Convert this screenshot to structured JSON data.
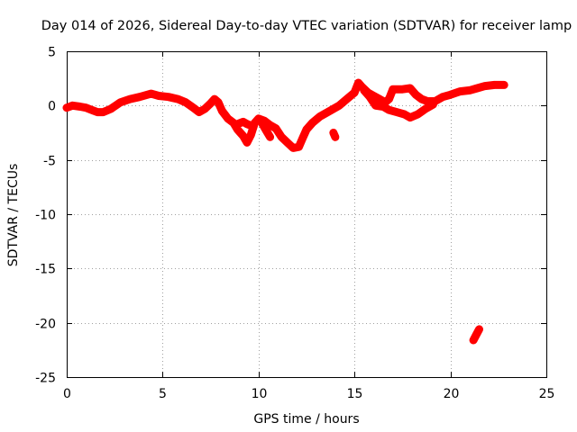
{
  "chart_data": {
    "type": "scatter",
    "title": "Day 014 of 2026, Sidereal Day-to-day VTEC variation (SDTVAR) for receiver lamp",
    "xlabel": "GPS time / hours",
    "ylabel": "SDTVAR / TECUs",
    "xlim": [
      0,
      25
    ],
    "ylim": [
      -25,
      5
    ],
    "xticks": [
      0,
      5,
      10,
      15,
      20,
      25
    ],
    "yticks": [
      5,
      0,
      -5,
      -10,
      -15,
      -20,
      -25
    ],
    "xtick_labels": [
      "0",
      "5",
      "10",
      "15",
      "20",
      "25"
    ],
    "ytick_labels": [
      "5",
      "0",
      "-5",
      "-10",
      "-15",
      "-20",
      "-25"
    ],
    "grid": true,
    "color": "#ff0000",
    "series": [
      {
        "name": "main track",
        "points": [
          [
            0.0,
            -0.2
          ],
          [
            0.3,
            0.0
          ],
          [
            0.7,
            -0.1
          ],
          [
            1.0,
            -0.2
          ],
          [
            1.3,
            -0.4
          ],
          [
            1.6,
            -0.6
          ],
          [
            1.9,
            -0.6
          ],
          [
            2.3,
            -0.3
          ],
          [
            2.8,
            0.3
          ],
          [
            3.3,
            0.6
          ],
          [
            3.8,
            0.8
          ],
          [
            4.4,
            1.1
          ],
          [
            4.8,
            0.9
          ],
          [
            5.3,
            0.8
          ],
          [
            5.8,
            0.6
          ],
          [
            6.2,
            0.3
          ],
          [
            6.6,
            -0.2
          ],
          [
            6.9,
            -0.6
          ],
          [
            7.2,
            -0.3
          ],
          [
            7.5,
            0.2
          ],
          [
            7.7,
            0.6
          ],
          [
            7.9,
            0.3
          ],
          [
            8.1,
            -0.5
          ],
          [
            8.4,
            -1.2
          ],
          [
            8.7,
            -1.6
          ],
          [
            8.9,
            -2.2
          ],
          [
            9.2,
            -2.8
          ],
          [
            9.4,
            -3.4
          ],
          [
            9.6,
            -2.7
          ],
          [
            9.8,
            -1.6
          ],
          [
            10.0,
            -1.2
          ],
          [
            10.3,
            -1.4
          ],
          [
            10.6,
            -1.8
          ],
          [
            10.9,
            -2.1
          ],
          [
            11.2,
            -2.9
          ],
          [
            11.5,
            -3.4
          ],
          [
            11.8,
            -3.9
          ],
          [
            12.1,
            -3.8
          ],
          [
            12.3,
            -3.0
          ],
          [
            12.5,
            -2.2
          ],
          [
            12.8,
            -1.6
          ],
          [
            13.2,
            -1.0
          ],
          [
            13.7,
            -0.5
          ],
          [
            14.2,
            0.0
          ],
          [
            14.6,
            0.6
          ],
          [
            15.0,
            1.2
          ],
          [
            15.2,
            2.1
          ],
          [
            15.4,
            1.7
          ],
          [
            15.7,
            1.2
          ],
          [
            16.0,
            0.9
          ],
          [
            16.3,
            0.6
          ],
          [
            16.6,
            0.3
          ],
          [
            16.8,
            0.6
          ],
          [
            17.0,
            1.5
          ],
          [
            17.5,
            1.5
          ],
          [
            17.9,
            1.6
          ],
          [
            18.2,
            1.0
          ],
          [
            18.5,
            0.6
          ],
          [
            18.8,
            0.4
          ],
          [
            19.2,
            0.4
          ],
          [
            19.6,
            0.8
          ],
          [
            20.0,
            1.0
          ],
          [
            20.5,
            1.3
          ],
          [
            21.0,
            1.4
          ],
          [
            21.4,
            1.6
          ],
          [
            21.8,
            1.8
          ],
          [
            22.3,
            1.9
          ],
          [
            22.8,
            1.9
          ]
        ]
      },
      {
        "name": "loop branch 1",
        "points": [
          [
            8.9,
            -1.7
          ],
          [
            9.2,
            -1.5
          ],
          [
            9.4,
            -1.7
          ],
          [
            9.7,
            -1.9
          ]
        ]
      },
      {
        "name": "loop branch 2",
        "points": [
          [
            10.2,
            -1.7
          ],
          [
            10.4,
            -2.3
          ],
          [
            10.6,
            -2.9
          ]
        ]
      },
      {
        "name": "loop branch 3",
        "points": [
          [
            15.5,
            1.4
          ],
          [
            15.8,
            0.8
          ],
          [
            16.1,
            0.0
          ],
          [
            16.5,
            -0.1
          ],
          [
            16.8,
            -0.4
          ],
          [
            17.2,
            -0.6
          ],
          [
            17.6,
            -0.8
          ],
          [
            17.9,
            -1.1
          ],
          [
            18.3,
            -0.8
          ],
          [
            18.7,
            -0.3
          ],
          [
            19.1,
            0.1
          ]
        ]
      },
      {
        "name": "segment near 14h",
        "points": [
          [
            13.9,
            -2.5
          ],
          [
            14.0,
            -2.9
          ]
        ]
      },
      {
        "name": "segment near 21h",
        "points": [
          [
            21.2,
            -21.6
          ],
          [
            21.35,
            -21.1
          ],
          [
            21.5,
            -20.6
          ]
        ]
      }
    ]
  }
}
